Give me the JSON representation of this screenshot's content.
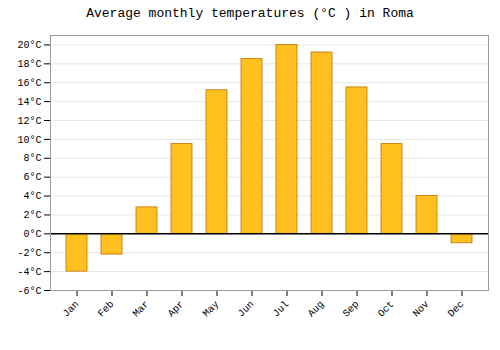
{
  "chart_data": {
    "type": "bar",
    "title": "Average monthly temperatures (°C ) in Roma",
    "categories": [
      "Jan",
      "Feb",
      "Mar",
      "Apr",
      "May",
      "Jun",
      "Jul",
      "Aug",
      "Sep",
      "Oct",
      "Nov",
      "Dec"
    ],
    "values": [
      -4.0,
      -2.2,
      2.8,
      9.5,
      15.2,
      18.5,
      20.0,
      19.2,
      15.5,
      9.5,
      4.0,
      -1.0
    ],
    "color": "#FFC020",
    "ylim": [
      -6,
      21
    ],
    "yticks": [
      {
        "value": -6,
        "label": "-6°C"
      },
      {
        "value": -4,
        "label": "-4°C"
      },
      {
        "value": -2,
        "label": "-2°C"
      },
      {
        "value": 0,
        "label": "0°C"
      },
      {
        "value": 2,
        "label": "2°C"
      },
      {
        "value": 4,
        "label": "4°C"
      },
      {
        "value": 6,
        "label": "6°C"
      },
      {
        "value": 8,
        "label": "8°C"
      },
      {
        "value": 10,
        "label": "10°C"
      },
      {
        "value": 12,
        "label": "12°C"
      },
      {
        "value": 14,
        "label": "14°C"
      },
      {
        "value": 16,
        "label": "16°C"
      },
      {
        "value": 18,
        "label": "18°C"
      },
      {
        "value": 20,
        "label": "20°C"
      }
    ],
    "grid": true
  }
}
